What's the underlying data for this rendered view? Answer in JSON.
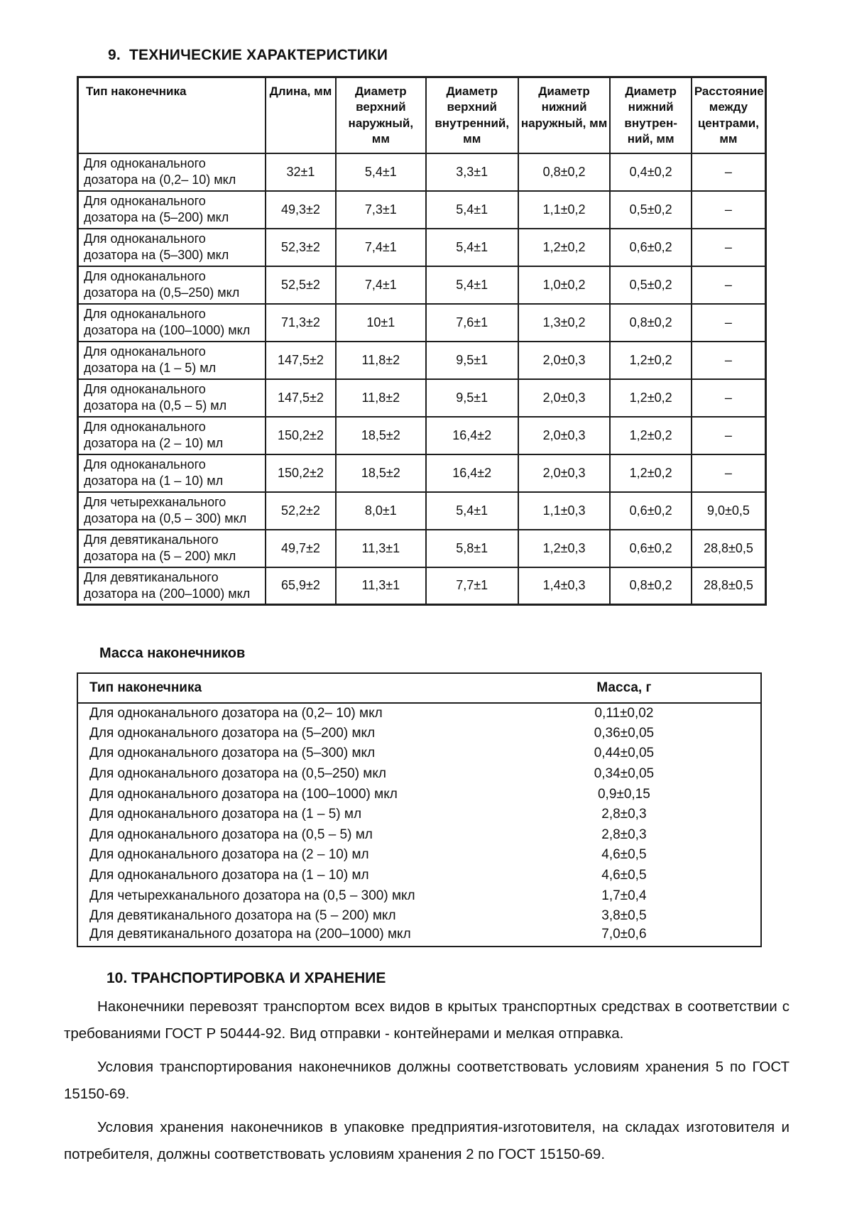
{
  "page": {
    "section9_title": "9.  ТЕХНИЧЕСКИЕ ХАРАКТЕРИСТИКИ",
    "mass_title": "Масса наконечников",
    "section10_title": "10. ТРАНСПОРТИРОВКА И ХРАНЕНИЕ",
    "paragraphs": [
      "Наконечники перевозят транспортом всех видов в крытых транспортных средствах в соответствии с требованиями ГОСТ Р 50444-92. Вид отправки - контейнерами и мелкая отправка.",
      "Условия транспортирования наконечников должны соответствовать условиям хранения 5 по ГОСТ 15150-69.",
      "Условия хранения наконечников в упаковке предприятия-изготовителя, на складах изготовителя и потребителя, должны соответствовать условиям хранения 2 по ГОСТ 15150-69."
    ]
  },
  "spec_table": {
    "headers": [
      "Тип наконечника",
      "Длина, мм",
      "Диаметр верхний наружный, мм",
      "Диаметр верхний внутренний, мм",
      "Диаметр нижний наружный, мм",
      "Диаметр нижний внутрен-ний, мм",
      "Расстояние между центрами, мм"
    ],
    "rows": [
      {
        "type": "Для одноканального дозатора на (0,2– 10) мкл",
        "values": [
          "32±1",
          "5,4±1",
          "3,3±1",
          "0,8±0,2",
          "0,4±0,2",
          "–"
        ]
      },
      {
        "type": "Для одноканального дозатора на (5–200) мкл",
        "values": [
          "49,3±2",
          "7,3±1",
          "5,4±1",
          "1,1±0,2",
          "0,5±0,2",
          "–"
        ]
      },
      {
        "type": "Для одноканального дозатора на (5–300) мкл",
        "values": [
          "52,3±2",
          "7,4±1",
          "5,4±1",
          "1,2±0,2",
          "0,6±0,2",
          "–"
        ]
      },
      {
        "type": "Для одноканального дозатора на (0,5–250) мкл",
        "values": [
          "52,5±2",
          "7,4±1",
          "5,4±1",
          "1,0±0,2",
          "0,5±0,2",
          "–"
        ]
      },
      {
        "type": "Для одноканального дозатора на (100–1000) мкл",
        "values": [
          "71,3±2",
          "10±1",
          "7,6±1",
          "1,3±0,2",
          "0,8±0,2",
          "–"
        ]
      },
      {
        "type": "Для одноканального дозатора на (1 – 5) мл",
        "values": [
          "147,5±2",
          "11,8±2",
          "9,5±1",
          "2,0±0,3",
          "1,2±0,2",
          "–"
        ]
      },
      {
        "type": "Для одноканального дозатора на (0,5 – 5) мл",
        "values": [
          "147,5±2",
          "11,8±2",
          "9,5±1",
          "2,0±0,3",
          "1,2±0,2",
          "–"
        ]
      },
      {
        "type": "Для одноканального дозатора на (2 – 10) мл",
        "values": [
          "150,2±2",
          "18,5±2",
          "16,4±2",
          "2,0±0,3",
          "1,2±0,2",
          "–"
        ]
      },
      {
        "type": "Для одноканального дозатора на (1 – 10) мл",
        "values": [
          "150,2±2",
          "18,5±2",
          "16,4±2",
          "2,0±0,3",
          "1,2±0,2",
          "–"
        ]
      },
      {
        "type": "Для четырехканального дозатора на (0,5 – 300) мкл",
        "values": [
          "52,2±2",
          "8,0±1",
          "5,4±1",
          "1,1±0,3",
          "0,6±0,2",
          "9,0±0,5"
        ]
      },
      {
        "type": "Для девятиканального дозатора на (5 – 200) мкл",
        "values": [
          "49,7±2",
          "11,3±1",
          "5,8±1",
          "1,2±0,3",
          "0,6±0,2",
          "28,8±0,5"
        ]
      },
      {
        "type": "Для девятиканального дозатора на (200–1000) мкл",
        "values": [
          "65,9±2",
          "11,3±1",
          "7,7±1",
          "1,4±0,3",
          "0,8±0,2",
          "28,8±0,5"
        ]
      }
    ]
  },
  "mass_table": {
    "headers": [
      "Тип наконечника",
      "Масса, г"
    ],
    "rows": [
      {
        "type": "Для одноканального дозатора на (0,2– 10) мкл",
        "mass": "0,11±0,02"
      },
      {
        "type": "Для одноканального дозатора на (5–200) мкл",
        "mass": "0,36±0,05"
      },
      {
        "type": "Для одноканального дозатора на (5–300) мкл",
        "mass": "0,44±0,05"
      },
      {
        "type": "Для одноканального дозатора на (0,5–250) мкл",
        "mass": "0,34±0,05"
      },
      {
        "type": "Для одноканального дозатора на (100–1000) мкл",
        "mass": "0,9±0,15"
      },
      {
        "type": "Для одноканального дозатора на (1 – 5) мл",
        "mass": "2,8±0,3"
      },
      {
        "type": "Для одноканального дозатора на (0,5 – 5) мл",
        "mass": "2,8±0,3"
      },
      {
        "type": "Для одноканального дозатора на (2 – 10) мл",
        "mass": "4,6±0,5"
      },
      {
        "type": "Для одноканального дозатора на (1 – 10) мл",
        "mass": "4,6±0,5"
      },
      {
        "type": "Для четырехканального дозатора на (0,5 – 300) мкл",
        "mass": "1,7±0,4"
      },
      {
        "type": "Для девятиканального дозатора на (5 – 200) мкл",
        "mass": "3,8±0,5"
      },
      {
        "type": "Для девятиканального дозатора на (200–1000) мкл",
        "mass": "7,0±0,6"
      }
    ]
  }
}
